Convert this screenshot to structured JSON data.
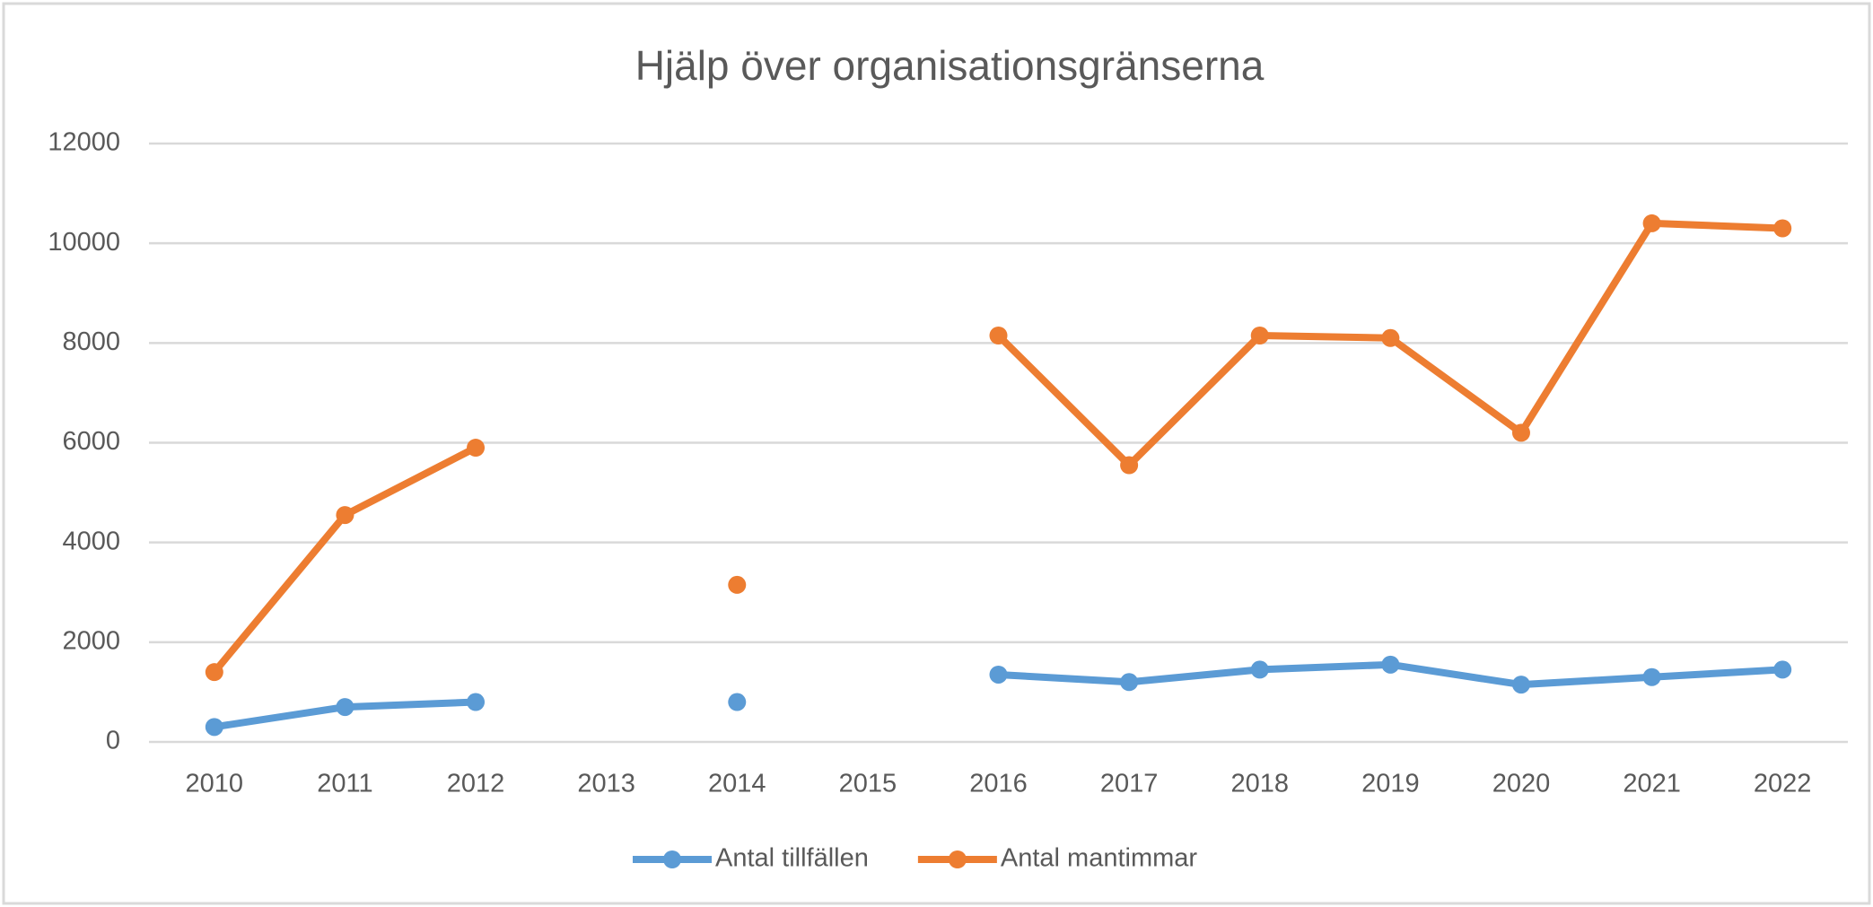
{
  "chart_data": {
    "type": "line",
    "title": "Hjälp över organisationsgränserna",
    "categories": [
      "2010",
      "2011",
      "2012",
      "2013",
      "2014",
      "2015",
      "2016",
      "2017",
      "2018",
      "2019",
      "2020",
      "2021",
      "2022"
    ],
    "series": [
      {
        "name": "Antal tillfällen",
        "color": "#5b9bd5",
        "values": [
          300,
          700,
          800,
          null,
          800,
          null,
          1350,
          1200,
          1450,
          1550,
          1150,
          1300,
          1450
        ]
      },
      {
        "name": "Antal mantimmar",
        "color": "#ed7d31",
        "values": [
          1400,
          4550,
          5900,
          null,
          3150,
          null,
          8150,
          5550,
          8150,
          8100,
          6200,
          10400,
          10300
        ]
      }
    ],
    "ylim": [
      0,
      12000
    ],
    "yticks": [
      0,
      2000,
      4000,
      6000,
      8000,
      10000,
      12000
    ],
    "grid": true,
    "legend": "bottom"
  }
}
